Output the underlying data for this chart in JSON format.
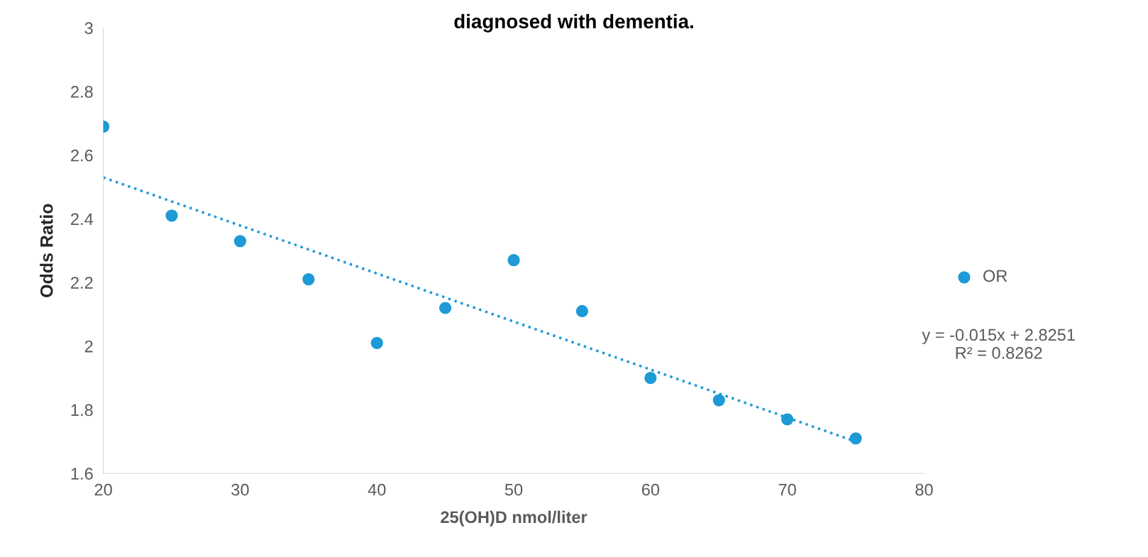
{
  "chart_data": {
    "type": "scatter",
    "title": "diagnosed with dementia.",
    "xlabel": "25(OH)D nmol/liter",
    "ylabel": "Odds Ratio",
    "x": [
      20,
      25,
      30,
      35,
      40,
      45,
      50,
      55,
      60,
      65,
      70,
      75
    ],
    "series": [
      {
        "name": "OR",
        "color": "#1e9ad6",
        "marker": "circle",
        "values": [
          2.69,
          2.41,
          2.33,
          2.21,
          2.01,
          2.12,
          2.27,
          2.11,
          1.9,
          1.83,
          1.77,
          1.71
        ]
      },
      {
        "type": "line",
        "color": "#1e9ad6",
        "line_style": "dotted",
        "marker": "none",
        "x": [
          20,
          75
        ],
        "values": [
          2.53,
          1.7
        ]
      }
    ],
    "xlim": [
      20,
      80
    ],
    "xticks": [
      20,
      30,
      40,
      50,
      60,
      70,
      80
    ],
    "ylim": [
      1.6,
      3
    ],
    "yticks": [
      1.6,
      1.8,
      2,
      2.2,
      2.4,
      2.6,
      2.8,
      3
    ],
    "grid": false,
    "legend": "right",
    "annotations": [
      "y = -0.015x + 2.8251\nR² = 0.8262"
    ]
  }
}
